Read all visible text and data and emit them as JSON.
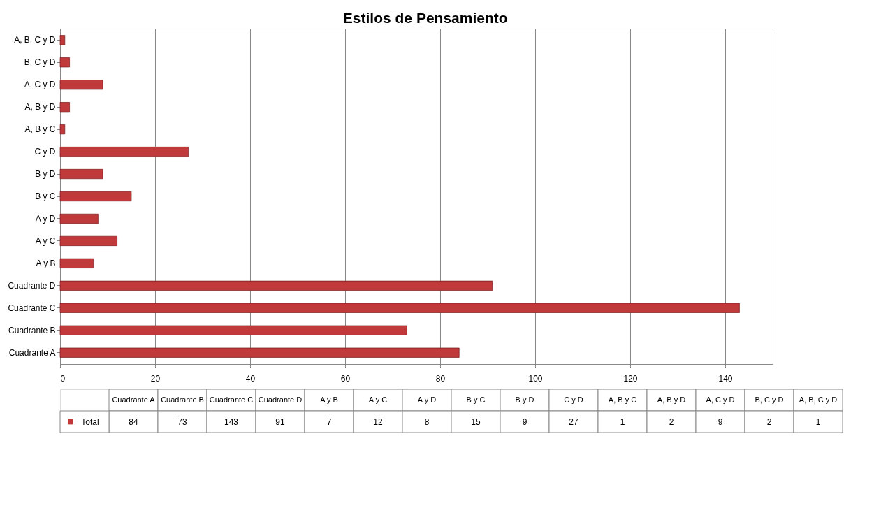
{
  "chart_data": {
    "type": "bar",
    "title": "Estilos de Pensamiento",
    "orientation": "horizontal",
    "categories": [
      "A, B, C y D",
      "B, C y D",
      "A, C y D",
      "A, B y D",
      "A, B y C",
      "C y D",
      "B y D",
      "B y C",
      "A y D",
      "A y C",
      "A y B",
      "Cuadrante D",
      "Cuadrante C",
      "Cuadrante B",
      "Cuadrante A"
    ],
    "series": [
      {
        "name": "Total",
        "color": "#c0393b",
        "values": [
          1,
          2,
          9,
          2,
          1,
          27,
          9,
          15,
          8,
          12,
          7,
          91,
          143,
          73,
          84
        ]
      }
    ],
    "value_labels": [
      "1",
      "2",
      "9",
      "2",
      "1",
      "27",
      "9",
      "15",
      "8",
      "12",
      "7",
      "91",
      "143",
      "73",
      "84"
    ],
    "xlim": [
      0,
      150
    ],
    "xticks": [
      0,
      20,
      40,
      60,
      80,
      100,
      120,
      140
    ],
    "grid": "x",
    "legend": "bottom"
  }
}
